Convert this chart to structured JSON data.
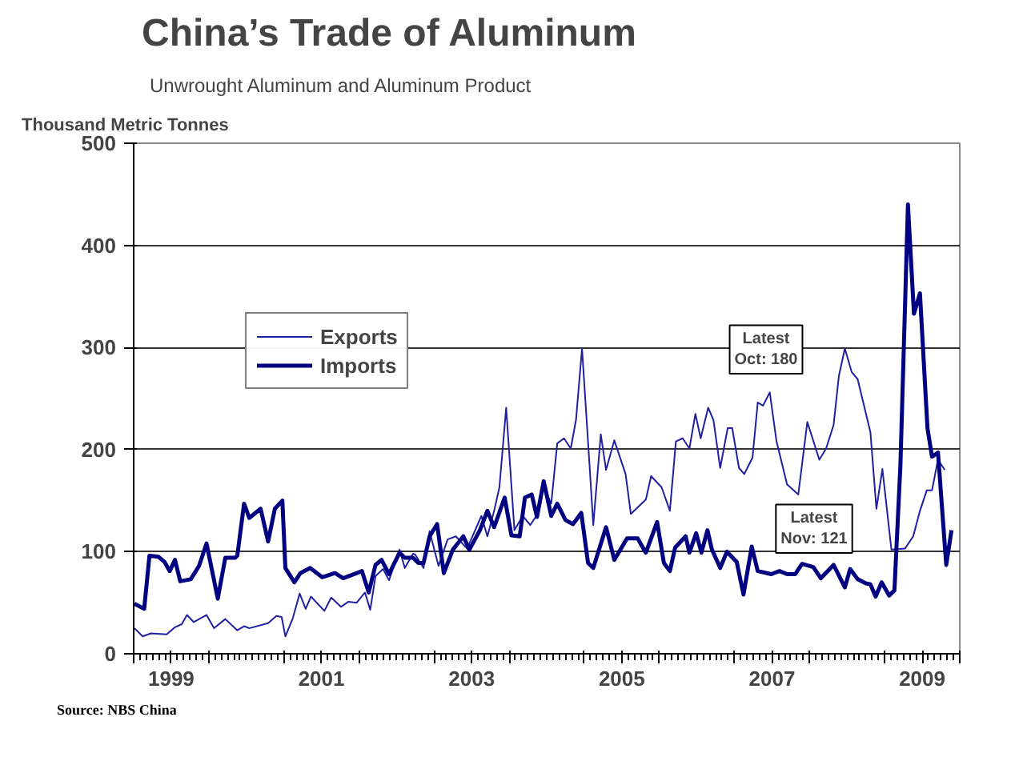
{
  "chart_data": {
    "type": "line",
    "title": "China’s Trade of Aluminum",
    "subtitle": "Unwrought Aluminum and Aluminum Product",
    "ylabel": "Thousand Metric Tonnes",
    "annotations": [
      "Latest\nOct: 180",
      "Latest\nNov: 121",
      "Source: NBS China"
    ],
    "xlim": [
      1999,
      2010
    ],
    "ylim": [
      0,
      500
    ],
    "yticks": [
      0,
      100,
      200,
      300,
      400,
      500
    ],
    "xticks": [
      {
        "value": 1999,
        "label": null
      },
      {
        "value": 1999.5,
        "label": "1999"
      },
      {
        "value": 2000,
        "label": null
      },
      {
        "value": 2001,
        "label": null
      },
      {
        "value": 2001.5,
        "label": "2001"
      },
      {
        "value": 2002,
        "label": null
      },
      {
        "value": 2003,
        "label": null
      },
      {
        "value": 2003.5,
        "label": "2003"
      },
      {
        "value": 2004,
        "label": null
      },
      {
        "value": 2005,
        "label": null
      },
      {
        "value": 2005.5,
        "label": "2005"
      },
      {
        "value": 2006,
        "label": null
      },
      {
        "value": 2007,
        "label": null
      },
      {
        "value": 2007.5,
        "label": "2007"
      },
      {
        "value": 2008,
        "label": null
      },
      {
        "value": 2009,
        "label": null
      },
      {
        "value": 2009.5,
        "label": "2009"
      },
      {
        "value": 2010,
        "label": null
      }
    ],
    "grid": "y",
    "legend": "top left",
    "marker": "none",
    "line_style": "solid",
    "series": [
      {
        "name": "Exports",
        "color": "#2020a0",
        "x": [
          1999.01,
          1999.12,
          1999.23,
          1999.44,
          1999.55,
          1999.64,
          1999.71,
          1999.8,
          1999.97,
          2000.07,
          2000.22,
          2000.38,
          2000.47,
          2000.54,
          2000.79,
          2000.9,
          2000.97,
          2001.02,
          2001.12,
          2001.21,
          2001.29,
          2001.36,
          2001.54,
          2001.63,
          2001.76,
          2001.86,
          2001.97,
          2002.08,
          2002.15,
          2002.22,
          2002.32,
          2002.4,
          2002.54,
          2002.61,
          2002.72,
          2002.75,
          2002.86,
          2002.94,
          2003.06,
          2003.18,
          2003.29,
          2003.44,
          2003.63,
          2003.71,
          2003.8,
          2003.87,
          2003.96,
          2004.07,
          2004.18,
          2004.28,
          2004.39,
          2004.46,
          2004.56,
          2004.64,
          2004.73,
          2004.82,
          2004.89,
          2004.97,
          2005.07,
          2005.12,
          2005.22,
          2005.29,
          2005.4,
          2005.55,
          2005.62,
          2005.82,
          2005.89,
          2006.03,
          2006.14,
          2006.22,
          2006.31,
          2006.4,
          2006.48,
          2006.55,
          2006.65,
          2006.72,
          2006.81,
          2006.91,
          2006.97,
          2007.06,
          2007.13,
          2007.24,
          2007.31,
          2007.38,
          2007.47,
          2007.56,
          2007.7,
          2007.85,
          2007.97,
          2008.13,
          2008.22,
          2008.32,
          2008.39,
          2008.47,
          2008.56,
          2008.64,
          2008.81,
          2008.89,
          2008.97,
          2009.09,
          2009.27,
          2009.38,
          2009.47,
          2009.56,
          2009.63,
          2009.71,
          2009.8
        ],
        "values": [
          25,
          17,
          20,
          19,
          26,
          29,
          38,
          31,
          38,
          25,
          34,
          23,
          27,
          25,
          30,
          37,
          36,
          17,
          35,
          59,
          44,
          56,
          42,
          55,
          46,
          51,
          50,
          60,
          43,
          76,
          83,
          72,
          102,
          84,
          98,
          97,
          84,
          120,
          86,
          112,
          115,
          103,
          135,
          115,
          140,
          163,
          241,
          121,
          135,
          126,
          138,
          163,
          147,
          206,
          211,
          201,
          229,
          299,
          185,
          126,
          215,
          180,
          209,
          176,
          137,
          151,
          174,
          163,
          140,
          208,
          211,
          201,
          235,
          211,
          241,
          229,
          182,
          221,
          221,
          182,
          176,
          192,
          246,
          243,
          256,
          208,
          166,
          156,
          227,
          190,
          201,
          224,
          272,
          299,
          276,
          269,
          217,
          142,
          181,
          102,
          103,
          115,
          140,
          160,
          160,
          190,
          180
        ]
      },
      {
        "name": "Imports",
        "color": "#000080",
        "x": [
          1999.01,
          1999.14,
          1999.21,
          1999.33,
          1999.41,
          1999.48,
          1999.55,
          1999.62,
          1999.76,
          1999.87,
          1999.97,
          2000.12,
          2000.22,
          2000.35,
          2000.38,
          2000.47,
          2000.54,
          2000.69,
          2000.79,
          2000.88,
          2000.98,
          2001.02,
          2001.14,
          2001.22,
          2001.35,
          2001.51,
          2001.68,
          2001.79,
          2002.04,
          2002.13,
          2002.22,
          2002.3,
          2002.4,
          2002.54,
          2002.61,
          2002.72,
          2002.79,
          2002.86,
          2002.94,
          2003.04,
          2003.13,
          2003.25,
          2003.39,
          2003.47,
          2003.61,
          2003.71,
          2003.8,
          2003.94,
          2004.03,
          2004.14,
          2004.21,
          2004.3,
          2004.37,
          2004.46,
          2004.56,
          2004.64,
          2004.75,
          2004.85,
          2004.96,
          2005.05,
          2005.12,
          2005.29,
          2005.4,
          2005.57,
          2005.71,
          2005.82,
          2005.97,
          2006.06,
          2006.14,
          2006.21,
          2006.35,
          2006.4,
          2006.49,
          2006.56,
          2006.64,
          2006.7,
          2006.81,
          2006.9,
          2007.03,
          2007.12,
          2007.23,
          2007.31,
          2007.49,
          2007.6,
          2007.7,
          2007.81,
          2007.9,
          2008.05,
          2008.15,
          2008.32,
          2008.47,
          2008.54,
          2008.64,
          2008.75,
          2008.81,
          2008.88,
          2008.96,
          2009.06,
          2009.13,
          2009.21,
          2009.31,
          2009.39,
          2009.47,
          2009.57,
          2009.63,
          2009.71,
          2009.82,
          2009.89
        ],
        "values": [
          49,
          44,
          96,
          95,
          90,
          81,
          92,
          71,
          73,
          86,
          108,
          54,
          94,
          94,
          96,
          147,
          133,
          142,
          110,
          142,
          150,
          84,
          70,
          79,
          84,
          75,
          79,
          74,
          81,
          60,
          87,
          92,
          78,
          99,
          94,
          94,
          89,
          89,
          115,
          127,
          79,
          102,
          115,
          102,
          121,
          140,
          124,
          153,
          116,
          115,
          153,
          156,
          134,
          169,
          135,
          147,
          131,
          127,
          138,
          89,
          84,
          124,
          92,
          113,
          113,
          99,
          129,
          89,
          81,
          104,
          115,
          99,
          118,
          99,
          121,
          102,
          84,
          100,
          90,
          58,
          105,
          81,
          78,
          81,
          78,
          78,
          88,
          85,
          74,
          87,
          65,
          83,
          73,
          69,
          68,
          56,
          70,
          57,
          62,
          185,
          440,
          333,
          353,
          221,
          193,
          197,
          87,
          121
        ]
      }
    ]
  }
}
